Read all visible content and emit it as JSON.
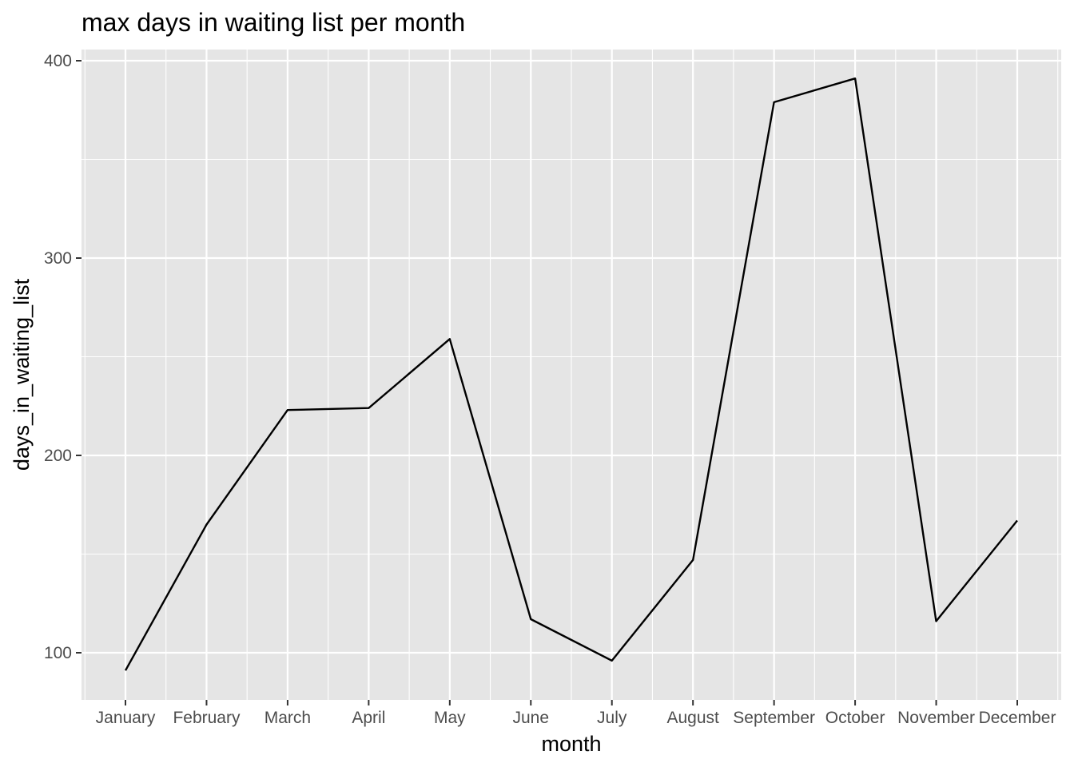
{
  "chart_data": {
    "type": "line",
    "title": "max days in waiting list per month",
    "xlabel": "month",
    "ylabel": "days_in_waiting_list",
    "categories": [
      "January",
      "February",
      "March",
      "April",
      "May",
      "June",
      "July",
      "August",
      "September",
      "October",
      "November",
      "December"
    ],
    "series": [
      {
        "values": [
          91,
          165,
          223,
          224,
          259,
          117,
          96,
          147,
          379,
          391,
          116,
          167
        ]
      }
    ],
    "yticks": [
      100,
      200,
      300,
      400
    ],
    "ylim": [
      76,
      405
    ],
    "grid": true,
    "legend": "none",
    "colors": {
      "panel": "#e5e5e5",
      "grid": "#ffffff",
      "line": "#000000",
      "tick": "#4d4d4d"
    }
  }
}
